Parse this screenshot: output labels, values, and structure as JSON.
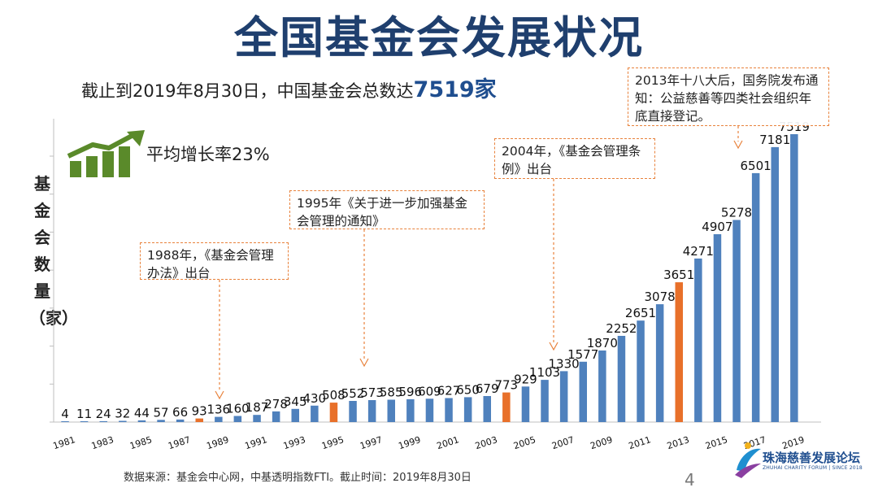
{
  "page": {
    "title": "全国基金会发展状况",
    "subtitle_prefix": "截止到2019年8月30日，中国基金会总数达",
    "subtitle_highlight": "7519家",
    "growth_label": "平均增长率23%",
    "ylabel": "基金会数量（家）",
    "source": "数据来源：基金会中心网，中基透明指数FTI。截止时间：2019年8月30日",
    "page_number": "4",
    "logo_cn": "珠海慈善发展论坛",
    "logo_en": "ZHUHAI CHARITY FORUM | SINCE 2018"
  },
  "callouts": [
    {
      "text": "1988年，《基金会管理办法》出台",
      "year": 1988
    },
    {
      "text": "1995年《关于进一步加强基金会管理的通知》",
      "year": 1995
    },
    {
      "text": "2004年，《基金会管理条例》出台",
      "year": 2004
    },
    {
      "text": "2013年十八大后，国务院发布通知：公益慈善等四类社会组织年底直接登记。",
      "year": 2013
    }
  ],
  "colors": {
    "bar": "#4f81bd",
    "highlight_bar": "#e8702a",
    "title": "#1f3f6e",
    "callout_border": "#e8823c",
    "growth_icon": "#5a8a2a"
  },
  "chart_data": {
    "type": "bar",
    "x": [
      1981,
      1982,
      1983,
      1984,
      1985,
      1986,
      1987,
      1988,
      1989,
      1990,
      1991,
      1992,
      1993,
      1994,
      1995,
      1996,
      1997,
      1998,
      1999,
      2000,
      2001,
      2002,
      2003,
      2004,
      2005,
      2006,
      2007,
      2008,
      2009,
      2010,
      2011,
      2012,
      2013,
      2014,
      2015,
      2016,
      2017,
      2018,
      2019
    ],
    "values": [
      4,
      11,
      24,
      32,
      44,
      57,
      66,
      93,
      136,
      160,
      187,
      278,
      345,
      430,
      508,
      552,
      573,
      585,
      596,
      609,
      627,
      650,
      679,
      773,
      929,
      1103,
      1330,
      1577,
      1870,
      2252,
      2651,
      3078,
      3651,
      4271,
      4907,
      5278,
      6501,
      7181,
      7519
    ],
    "highlight_years": [
      1988,
      1995,
      2004,
      2013
    ],
    "tick_labels": [
      "1981",
      "1983",
      "1985",
      "1987",
      "1989",
      "1991",
      "1993",
      "1995",
      "1997",
      "1999",
      "2001",
      "2003",
      "2005",
      "2007",
      "2009",
      "2011",
      "2013",
      "2015",
      "2017",
      "2019"
    ],
    "ylabel": "基金会数量（家）",
    "ylim": [
      0,
      8000
    ],
    "grid": false,
    "data_labels": true
  }
}
